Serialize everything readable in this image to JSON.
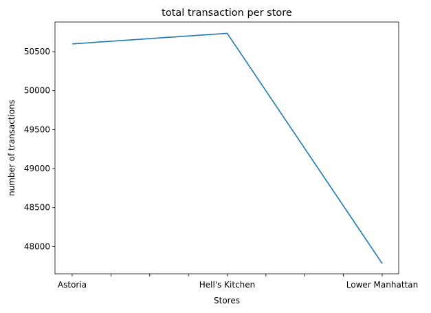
{
  "chart_data": {
    "type": "line",
    "title": "total transaction per store",
    "xlabel": "Stores",
    "ylabel": "number of transactions",
    "categories": [
      "Astoria",
      "Hell's Kitchen",
      "Lower Manhattan"
    ],
    "series": [
      {
        "values": [
          50599,
          50735,
          47782
        ],
        "color": "#1f77b4"
      }
    ],
    "yticks": [
      48000,
      48500,
      49000,
      49500,
      50000,
      50500
    ],
    "ylim": [
      47650,
      50880
    ],
    "grid": false,
    "legend": "none"
  }
}
